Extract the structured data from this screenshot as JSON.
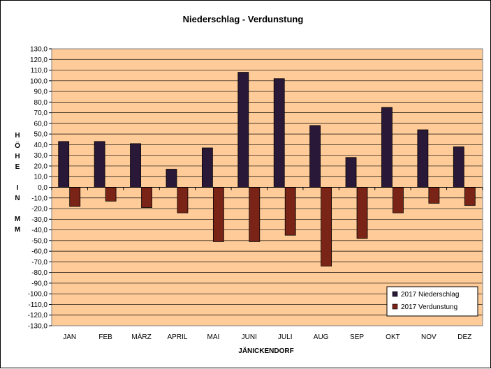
{
  "chart_data": {
    "type": "bar",
    "title": "Niederschlag  -  Verdunstung",
    "xlabel": "JÄNICKENDORF",
    "ylabel": "HÖHE IN MM",
    "ylabel_lines": [
      "H",
      "Ö",
      "H",
      "E",
      "",
      "I",
      "N",
      "",
      "M",
      "M"
    ],
    "categories": [
      "JAN",
      "FEB",
      "MÄRZ",
      "APRIL",
      "MAI",
      "JUNI",
      "JULI",
      "AUG",
      "SEP",
      "OKT",
      "NOV",
      "DEZ"
    ],
    "series": [
      {
        "name": "2017 Niederschlag",
        "color": "#2a1838",
        "values": [
          43,
          43,
          41,
          17,
          37,
          108,
          102,
          58,
          28,
          75,
          54,
          38
        ]
      },
      {
        "name": "2017 Verdunstung",
        "color": "#7a2418",
        "values": [
          -18,
          -13,
          -19,
          -24,
          -51,
          -51,
          -45,
          -74,
          -48,
          -24,
          -15,
          -17
        ]
      }
    ],
    "ylim": [
      -130,
      130
    ],
    "ytick_step": 10,
    "ytick_labels": [
      "130,0",
      "120,0",
      "110,0",
      "100,0",
      "90,0",
      "80,0",
      "70,0",
      "60,0",
      "50,0",
      "40,0",
      "30,0",
      "20,0",
      "10,0",
      "0,0",
      "-10,0",
      "-20,0",
      "-30,0",
      "-40,0",
      "-50,0",
      "-60,0",
      "-70,0",
      "-80,0",
      "-90,0",
      "-100,0",
      "-110,0",
      "-120,0",
      "-130,0"
    ],
    "grid": true,
    "legend_position": "bottom-right",
    "plot_background": "#ffcc99"
  }
}
